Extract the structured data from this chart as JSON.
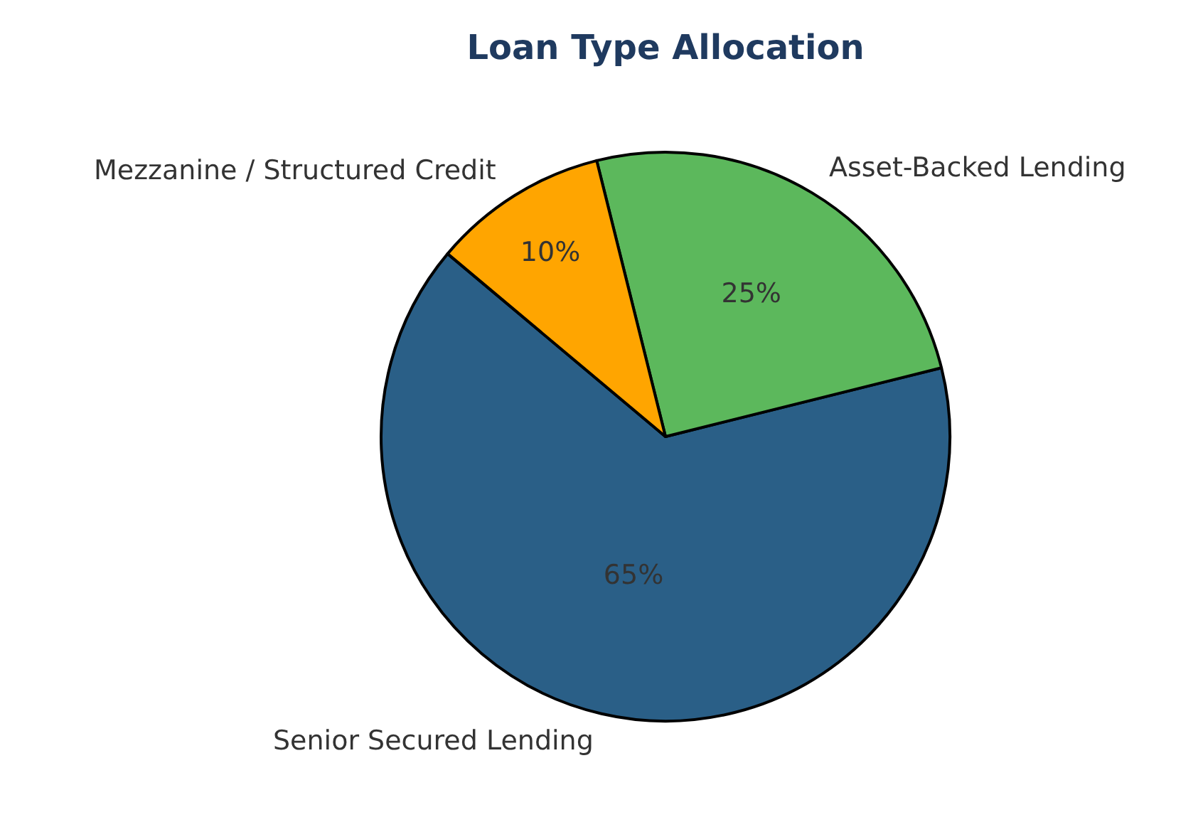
{
  "chart_data": {
    "type": "pie",
    "title": "Loan Type Allocation",
    "categories": [
      "Senior Secured Lending",
      "Asset-Backed Lending",
      "Mezzanine / Structured Credit"
    ],
    "values": [
      65,
      25,
      10
    ],
    "colors": [
      "#2a5f87",
      "#5cb85c",
      "#ffa500"
    ],
    "value_labels": [
      "65%",
      "25%",
      "10%"
    ]
  }
}
